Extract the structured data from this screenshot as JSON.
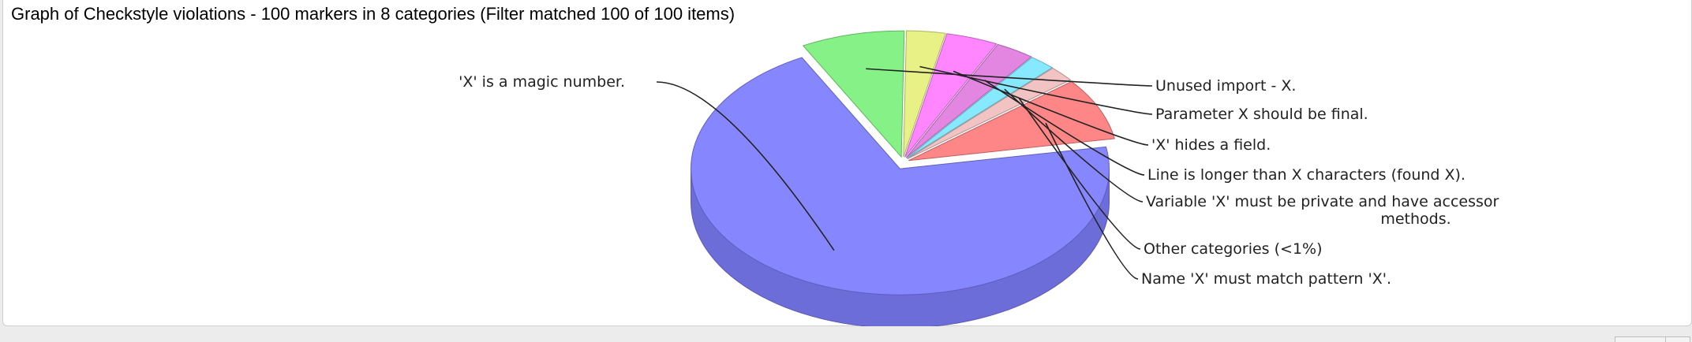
{
  "header": {
    "title": "Graph of Checkstyle violations - 100 markers in 8 categories (Filter matched 100 of 100 items)"
  },
  "chart_data": {
    "type": "pie",
    "subtype": "3d-exploded",
    "categories": [
      "'X' is a magic number.",
      "Unused import - X.",
      "Parameter X should be final.",
      "'X' hides a field.",
      "Line is longer than X characters (found X).",
      "Variable 'X' must be private and have accessor methods.",
      "Other categories (<1%)",
      "Name 'X' must match pattern 'X'."
    ],
    "label_lines": [
      [
        "'X' is a magic number."
      ],
      [
        "Unused import - X."
      ],
      [
        "Parameter X should be final."
      ],
      [
        "'X' hides a field."
      ],
      [
        "Line is longer than X characters (found X)."
      ],
      [
        "Variable 'X' must be private and have accessor",
        "methods."
      ],
      [
        "Other categories (<1%)"
      ],
      [
        "Name 'X' must match pattern 'X'."
      ]
    ],
    "values": [
      70,
      8,
      3,
      4,
      3,
      2,
      2,
      8
    ],
    "colors": [
      "#8080ff",
      "#80f080",
      "#e6f080",
      "#ff80ff",
      "#e080e0",
      "#80e8ff",
      "#f0c0c0",
      "#ff8080"
    ],
    "legend": "none"
  }
}
